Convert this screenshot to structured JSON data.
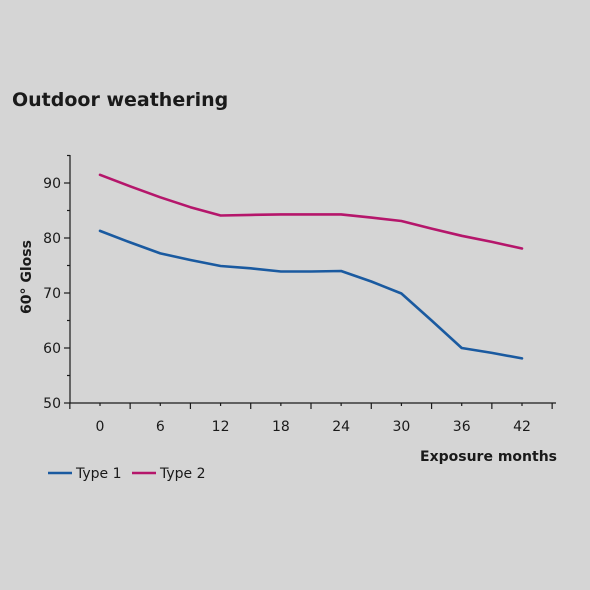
{
  "chart_data": {
    "type": "line",
    "title": "Outdoor weathering",
    "xlabel": "Exposure months",
    "ylabel": "60° Gloss",
    "x_ticks": [
      0,
      6,
      12,
      18,
      24,
      30,
      36,
      42
    ],
    "y_ticks": [
      50,
      60,
      70,
      80,
      90
    ],
    "xlim": [
      -3,
      45
    ],
    "ylim": [
      50,
      95
    ],
    "grid": false,
    "legend_position": "bottom-left",
    "series": [
      {
        "name": "Type 1",
        "color": "#1a5aa0",
        "points": [
          [
            0,
            81.3
          ],
          [
            3,
            79.2
          ],
          [
            6,
            77.2
          ],
          [
            9,
            76
          ],
          [
            12,
            74.9
          ],
          [
            15,
            74.5
          ],
          [
            18,
            73.9
          ],
          [
            21,
            73.9
          ],
          [
            24,
            74
          ],
          [
            27,
            72.1
          ],
          [
            30,
            69.9
          ],
          [
            33,
            65
          ],
          [
            36,
            60
          ],
          [
            39,
            59.1
          ],
          [
            42,
            58.1
          ]
        ]
      },
      {
        "name": "Type 2",
        "color": "#b5166b",
        "points": [
          [
            0,
            91.5
          ],
          [
            3,
            89.4
          ],
          [
            6,
            87.4
          ],
          [
            9,
            85.6
          ],
          [
            12,
            84.1
          ],
          [
            15,
            84.2
          ],
          [
            18,
            84.3
          ],
          [
            21,
            84.3
          ],
          [
            24,
            84.3
          ],
          [
            27,
            83.7
          ],
          [
            30,
            83.1
          ],
          [
            33,
            81.7
          ],
          [
            36,
            80.4
          ],
          [
            39,
            79.3
          ],
          [
            42,
            78.1
          ]
        ]
      }
    ]
  }
}
